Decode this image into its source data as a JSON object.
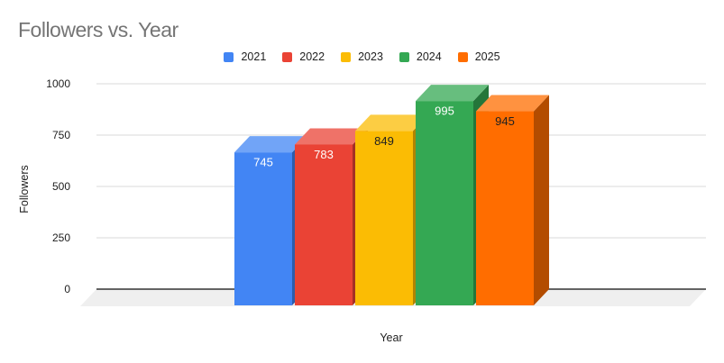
{
  "chart_data": {
    "type": "bar",
    "variant": "3d-column",
    "title": "Followers vs. Year",
    "xlabel": "Year",
    "ylabel": "Followers",
    "categories": [
      "2021",
      "2022",
      "2023",
      "2024",
      "2025"
    ],
    "values": [
      745,
      783,
      849,
      995,
      945
    ],
    "series_colors": [
      "#4285F4",
      "#EA4335",
      "#FBBC04",
      "#34A853",
      "#FF6D00"
    ],
    "value_label_colors": [
      "#ffffff",
      "#ffffff",
      "#212121",
      "#ffffff",
      "#212121"
    ],
    "ylim": [
      0,
      1000
    ],
    "yticks": [
      0,
      250,
      500,
      750,
      1000
    ],
    "grid": true,
    "legend_position": "top",
    "colors": {
      "title_text": "#757575",
      "axis_text": "#212121",
      "gridline": "#dadada",
      "axis_line": "#333333",
      "floor": "#efefef",
      "background": "#ffffff"
    }
  }
}
